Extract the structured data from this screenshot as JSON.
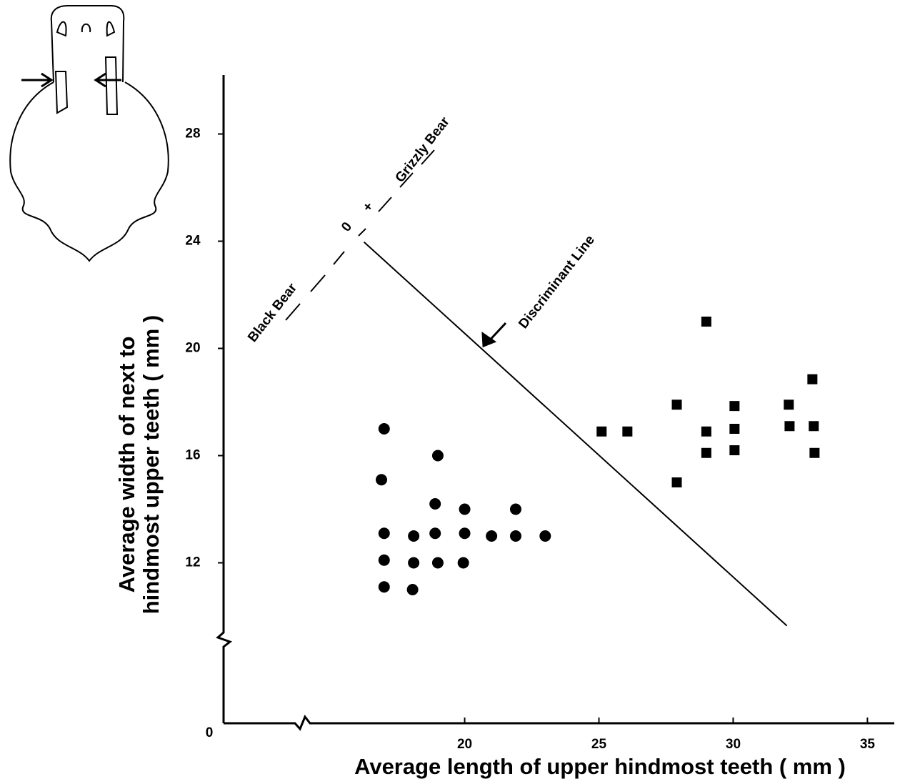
{
  "chart_data": {
    "type": "scatter",
    "x_label": "Average length of upper hindmost teeth ( mm )",
    "y_label": [
      "Average width of next to",
      "hindmost upper teeth ( mm )"
    ],
    "xlim": [
      0,
      36
    ],
    "xbreak": [
      0,
      14
    ],
    "xticks": [
      20,
      25,
      30,
      35
    ],
    "ylim": [
      0,
      30.2
    ],
    "ybreak": [
      0,
      9
    ],
    "yticks": [
      0,
      12,
      16,
      20,
      24,
      28
    ],
    "series": [
      {
        "name": "Black Bear",
        "marker": "circle",
        "color": "#000000",
        "x": [
          17,
          16.9,
          19,
          17,
          18.1,
          18.9,
          20,
          21,
          21.9,
          23,
          18.9,
          20,
          21.9,
          17,
          18.1,
          19,
          19.95,
          17,
          18.06
        ],
        "y": [
          17,
          15.1,
          16,
          13.1,
          13,
          13.1,
          13.1,
          13,
          13,
          13,
          14.2,
          14,
          14,
          12.1,
          12,
          12,
          12,
          11.1,
          11
        ]
      },
      {
        "name": "Grizzly Bear",
        "marker": "square",
        "color": "#000000",
        "x": [
          29,
          32.95,
          27.9,
          30.05,
          32.07,
          25.1,
          26.06,
          29,
          30.05,
          32.1,
          33,
          29,
          30.05,
          33.03,
          27.9
        ],
        "y": [
          21,
          18.85,
          17.9,
          17.85,
          17.9,
          16.9,
          16.9,
          16.9,
          17,
          17.1,
          17.1,
          16.1,
          16.2,
          16.1,
          15
        ]
      }
    ],
    "lines": [
      {
        "name": "Discriminant Line",
        "x": [
          16.25,
          32
        ],
        "y": [
          23.97,
          9.65
        ]
      }
    ],
    "legend_symbols": [
      "0",
      "+"
    ]
  }
}
